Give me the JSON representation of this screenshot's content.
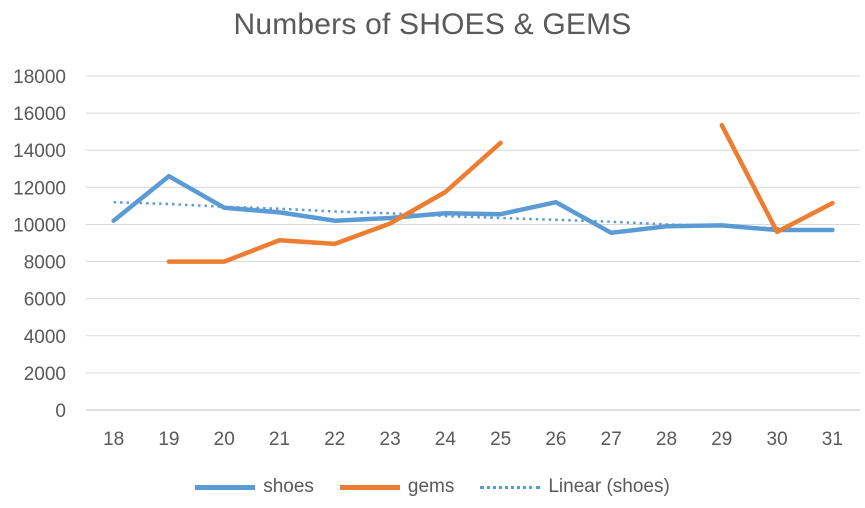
{
  "chart_data": {
    "type": "line",
    "title": "Numbers of SHOES & GEMS",
    "xlabel": "",
    "ylabel": "",
    "x": [
      18,
      19,
      20,
      21,
      22,
      23,
      24,
      25,
      26,
      27,
      28,
      29,
      30,
      31
    ],
    "x_tick_labels": [
      "18",
      "19",
      "20",
      "21",
      "22",
      "23",
      "24",
      "25",
      "26",
      "27",
      "28",
      "29",
      "30",
      "31"
    ],
    "ylim": [
      0,
      18000
    ],
    "y_ticks": [
      0,
      2000,
      4000,
      6000,
      8000,
      10000,
      12000,
      14000,
      16000,
      18000
    ],
    "y_tick_labels": [
      "0",
      "2000",
      "4000",
      "6000",
      "8000",
      "10000",
      "12000",
      "14000",
      "16000",
      "18000"
    ],
    "grid": true,
    "legend_position": "bottom",
    "series": [
      {
        "name": "shoes",
        "color": "#5b9bd5",
        "style": "solid",
        "values": [
          10200,
          12600,
          10900,
          10650,
          10200,
          10350,
          10600,
          10550,
          11200,
          9550,
          9900,
          9950,
          9700,
          9700
        ]
      },
      {
        "name": "gems",
        "color": "#ed7d31",
        "style": "solid",
        "values": [
          null,
          8000,
          8000,
          9150,
          8950,
          10050,
          11750,
          14400,
          null,
          null,
          null,
          15350,
          9600,
          11150
        ]
      },
      {
        "name": "Linear (shoes)",
        "color": "#5b9bd5",
        "style": "dotted",
        "values": [
          11200,
          11100,
          10950,
          10850,
          10700,
          10600,
          10450,
          10350,
          10250,
          10150,
          10000,
          9900,
          9800,
          9650
        ]
      }
    ]
  }
}
